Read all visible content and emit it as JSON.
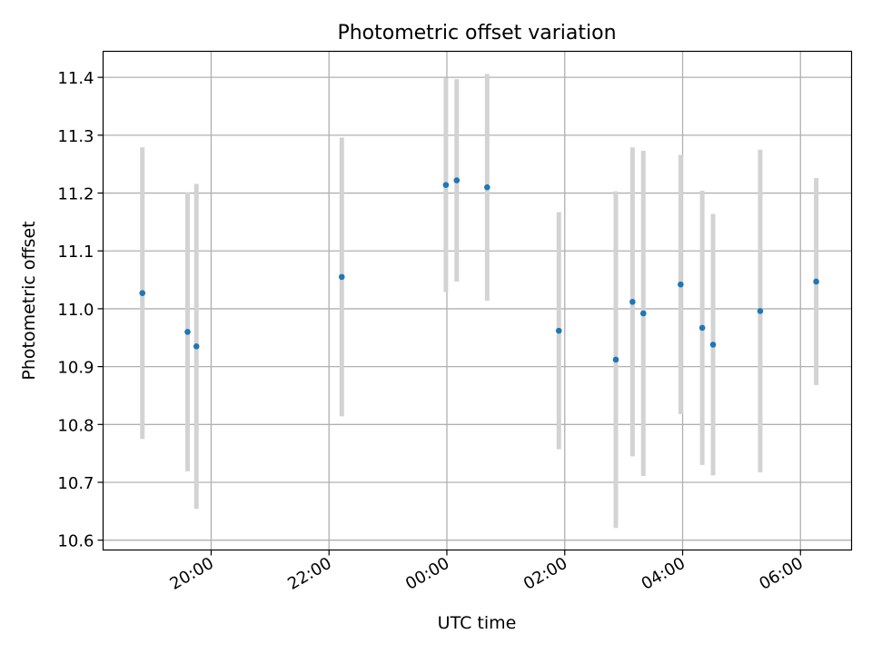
{
  "chart_data": {
    "type": "scatter",
    "title": "Photometric offset variation",
    "xlabel": "UTC time",
    "ylabel": "Photometric offset",
    "ylim": [
      10.583,
      11.445
    ],
    "xlim": [
      "18:10",
      "06:52"
    ],
    "y_ticks": [
      "10.6",
      "10.7",
      "10.8",
      "10.9",
      "11.0",
      "11.1",
      "11.2",
      "11.3",
      "11.4"
    ],
    "x_ticks": [
      "20:00",
      "22:00",
      "00:00",
      "02:00",
      "04:00",
      "06:00"
    ],
    "grid": true,
    "points": [
      {
        "x": "18:50",
        "y": 11.027,
        "yerr": 0.252
      },
      {
        "x": "19:36",
        "y": 10.96,
        "yerr": 0.241
      },
      {
        "x": "19:45",
        "y": 10.935,
        "yerr": 0.281
      },
      {
        "x": "22:13",
        "y": 11.055,
        "yerr": 0.241
      },
      {
        "x": "23:59",
        "y": 11.214,
        "yerr": 0.185
      },
      {
        "x": "00:10",
        "y": 11.222,
        "yerr": 0.175
      },
      {
        "x": "00:41",
        "y": 11.21,
        "yerr": 0.196
      },
      {
        "x": "01:54",
        "y": 10.962,
        "yerr": 0.205
      },
      {
        "x": "02:52",
        "y": 10.912,
        "yerr": 0.291
      },
      {
        "x": "03:09",
        "y": 11.012,
        "yerr": 0.267
      },
      {
        "x": "03:20",
        "y": 10.992,
        "yerr": 0.281
      },
      {
        "x": "03:58",
        "y": 11.042,
        "yerr": 0.224
      },
      {
        "x": "04:20",
        "y": 10.967,
        "yerr": 0.237
      },
      {
        "x": "04:31",
        "y": 10.938,
        "yerr": 0.226
      },
      {
        "x": "05:19",
        "y": 10.996,
        "yerr": 0.279
      },
      {
        "x": "06:16",
        "y": 11.047,
        "yerr": 0.179
      }
    ],
    "colors": {
      "point": "#1f77b4",
      "errorbar": "#d3d3d3",
      "grid": "#b0b0b0",
      "axes": "#000000"
    }
  }
}
